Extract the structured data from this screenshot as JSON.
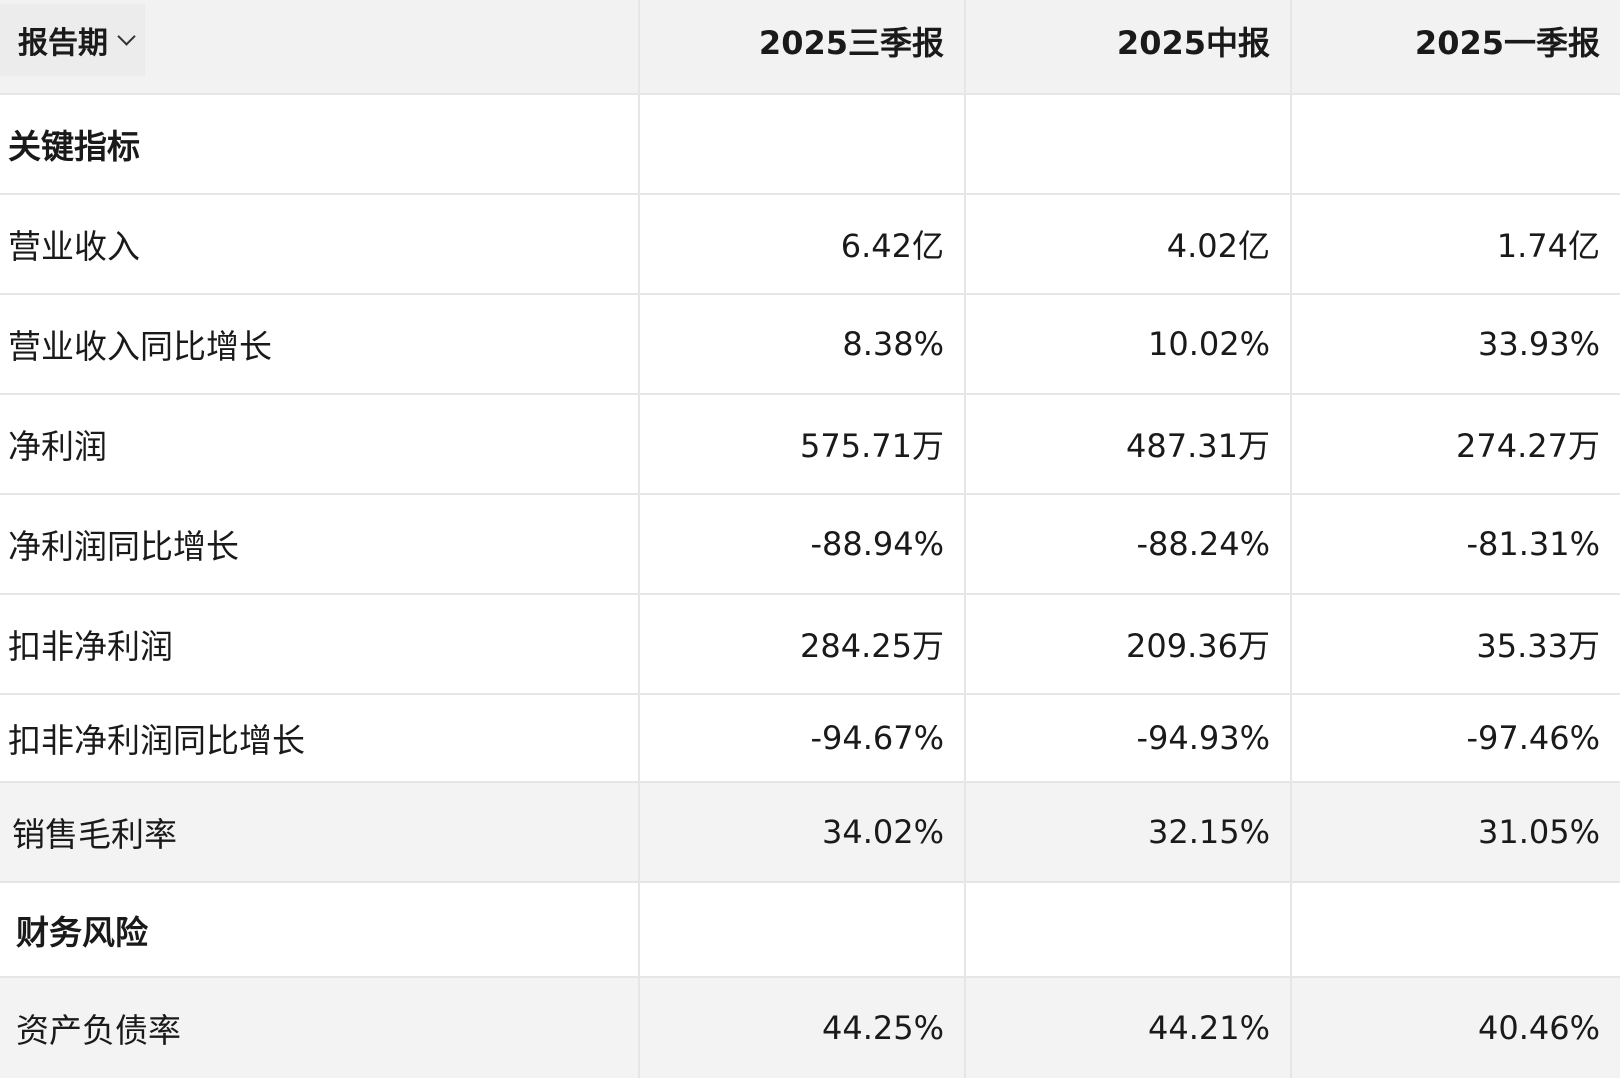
{
  "header": {
    "period_label": "报告期",
    "columns": [
      "2025三季报",
      "2025中报",
      "2025一季报"
    ]
  },
  "sections": {
    "key_indicators": "关键指标",
    "financial_risk": "财务风险"
  },
  "rows": [
    {
      "label": "营业收入",
      "values": [
        "6.42亿",
        "4.02亿",
        "1.74亿"
      ]
    },
    {
      "label": "营业收入同比增长",
      "values": [
        "8.38%",
        "10.02%",
        "33.93%"
      ]
    },
    {
      "label": "净利润",
      "values": [
        "575.71万",
        "487.31万",
        "274.27万"
      ]
    },
    {
      "label": "净利润同比增长",
      "values": [
        "-88.94%",
        "-88.24%",
        "-81.31%"
      ]
    },
    {
      "label": "扣非净利润",
      "values": [
        "284.25万",
        "209.36万",
        "35.33万"
      ]
    },
    {
      "label": "扣非净利润同比增长",
      "values": [
        "-94.67%",
        "-94.93%",
        "-97.46%"
      ]
    },
    {
      "label": "销售毛利率",
      "values": [
        "34.02%",
        "32.15%",
        "31.05%"
      ]
    }
  ],
  "risk_rows": [
    {
      "label": "资产负债率",
      "values": [
        "44.25%",
        "44.21%",
        "40.46%"
      ]
    }
  ],
  "icons": {
    "period_dropdown": "chevron-down-icon"
  }
}
